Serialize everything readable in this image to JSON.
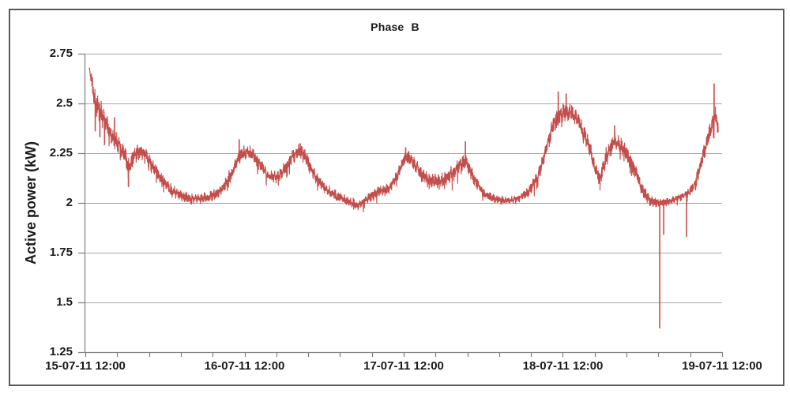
{
  "window": {
    "background": "#FFFFFF",
    "border_color": "#595959"
  },
  "chart_data": {
    "type": "line",
    "title": "Phase B",
    "xlabel": "",
    "ylabel": "Active power (kW)",
    "ylim": [
      1.25,
      2.75
    ],
    "xlim_hours": [
      0,
      96
    ],
    "grid": true,
    "legend_position": "none",
    "gridline_color": "#A6A6A6",
    "axis_color": "#7F7F7F",
    "y_ticks": [
      {
        "label": "2.75",
        "value": 2.75
      },
      {
        "label": "2.5",
        "value": 2.5
      },
      {
        "label": "2.25",
        "value": 2.25
      },
      {
        "label": "2",
        "value": 2.0
      },
      {
        "label": "1.75",
        "value": 1.75
      },
      {
        "label": "1.5",
        "value": 1.5
      },
      {
        "label": "1.25",
        "value": 1.25
      }
    ],
    "x_ticks_major": [
      {
        "label": "15-07-11 12:00",
        "hour": 0
      },
      {
        "label": "16-07-11 12:00",
        "hour": 24
      },
      {
        "label": "17-07-11 12:00",
        "hour": 48
      },
      {
        "label": "18-07-11 12:00",
        "hour": 72
      },
      {
        "label": "19-07-11 12:00",
        "hour": 96
      }
    ],
    "x_minor_tick_hours": 4.8,
    "series": [
      {
        "name": "Phase B active power",
        "color": "#C34E4B",
        "unit": "kW",
        "envelope": [
          [
            0.6,
            2.68
          ],
          [
            1.1,
            2.58
          ],
          [
            1.55,
            2.5
          ],
          [
            2.15,
            2.46
          ],
          [
            2.85,
            2.42
          ],
          [
            3.8,
            2.35
          ],
          [
            4.4,
            2.32
          ],
          [
            5.25,
            2.28
          ],
          [
            5.95,
            2.24
          ],
          [
            6.55,
            2.18
          ],
          [
            7.4,
            2.24
          ],
          [
            8.45,
            2.26
          ],
          [
            9.5,
            2.22
          ],
          [
            10.6,
            2.16
          ],
          [
            11.8,
            2.11
          ],
          [
            13.0,
            2.06
          ],
          [
            14.3,
            2.04
          ],
          [
            15.7,
            2.02
          ],
          [
            17.2,
            2.02
          ],
          [
            18.6,
            2.03
          ],
          [
            20.0,
            2.05
          ],
          [
            21.1,
            2.09
          ],
          [
            22.0,
            2.15
          ],
          [
            22.9,
            2.21
          ],
          [
            23.6,
            2.25
          ],
          [
            24.3,
            2.26
          ],
          [
            25.3,
            2.24
          ],
          [
            26.5,
            2.19
          ],
          [
            27.7,
            2.13
          ],
          [
            28.9,
            2.13
          ],
          [
            30.1,
            2.17
          ],
          [
            31.2,
            2.23
          ],
          [
            32.2,
            2.26
          ],
          [
            33.1,
            2.24
          ],
          [
            34.0,
            2.17
          ],
          [
            35.1,
            2.11
          ],
          [
            36.6,
            2.06
          ],
          [
            38.1,
            2.03
          ],
          [
            39.6,
            2.01
          ],
          [
            41.1,
            1.99
          ],
          [
            41.9,
            2.0
          ],
          [
            42.9,
            2.03
          ],
          [
            44.3,
            2.06
          ],
          [
            45.7,
            2.07
          ],
          [
            46.9,
            2.13
          ],
          [
            48.4,
            2.24
          ],
          [
            49.5,
            2.2
          ],
          [
            50.7,
            2.14
          ],
          [
            52.1,
            2.11
          ],
          [
            53.6,
            2.11
          ],
          [
            55.0,
            2.14
          ],
          [
            56.5,
            2.19
          ],
          [
            57.4,
            2.21
          ],
          [
            58.6,
            2.12
          ],
          [
            60.0,
            2.05
          ],
          [
            61.6,
            2.02
          ],
          [
            63.4,
            2.01
          ],
          [
            65.2,
            2.02
          ],
          [
            66.7,
            2.05
          ],
          [
            68.2,
            2.13
          ],
          [
            69.4,
            2.26
          ],
          [
            70.6,
            2.4
          ],
          [
            71.8,
            2.45
          ],
          [
            73.2,
            2.46
          ],
          [
            74.5,
            2.41
          ],
          [
            76.0,
            2.28
          ],
          [
            76.9,
            2.17
          ],
          [
            77.6,
            2.12
          ],
          [
            78.5,
            2.23
          ],
          [
            79.7,
            2.31
          ],
          [
            81.0,
            2.28
          ],
          [
            82.5,
            2.19
          ],
          [
            83.9,
            2.07
          ],
          [
            85.1,
            2.01
          ],
          [
            86.6,
            2.0
          ],
          [
            88.2,
            2.01
          ],
          [
            89.8,
            2.03
          ],
          [
            91.0,
            2.05
          ],
          [
            92.0,
            2.1
          ],
          [
            92.6,
            2.17
          ],
          [
            93.8,
            2.32
          ],
          [
            94.7,
            2.42
          ],
          [
            95.2,
            2.43
          ],
          [
            95.45,
            2.36
          ]
        ],
        "noise_half_width": [
          [
            0.6,
            0.02
          ],
          [
            1.0,
            0.055
          ],
          [
            2.0,
            0.07
          ],
          [
            4.0,
            0.055
          ],
          [
            7.0,
            0.05
          ],
          [
            10.0,
            0.045
          ],
          [
            13.0,
            0.035
          ],
          [
            16.0,
            0.028
          ],
          [
            19.0,
            0.03
          ],
          [
            22.0,
            0.04
          ],
          [
            24.0,
            0.042
          ],
          [
            27.0,
            0.035
          ],
          [
            31.0,
            0.04
          ],
          [
            33.0,
            0.042
          ],
          [
            36.0,
            0.032
          ],
          [
            40.0,
            0.026
          ],
          [
            44.0,
            0.028
          ],
          [
            47.0,
            0.035
          ],
          [
            48.5,
            0.04
          ],
          [
            51.0,
            0.04
          ],
          [
            54.0,
            0.042
          ],
          [
            57.0,
            0.045
          ],
          [
            59.0,
            0.035
          ],
          [
            62.0,
            0.024
          ],
          [
            65.0,
            0.022
          ],
          [
            68.0,
            0.035
          ],
          [
            71.0,
            0.06
          ],
          [
            73.0,
            0.055
          ],
          [
            75.0,
            0.05
          ],
          [
            77.0,
            0.045
          ],
          [
            79.0,
            0.052
          ],
          [
            81.0,
            0.05
          ],
          [
            83.0,
            0.045
          ],
          [
            85.0,
            0.03
          ],
          [
            87.0,
            0.022
          ],
          [
            89.0,
            0.02
          ],
          [
            91.0,
            0.03
          ],
          [
            93.0,
            0.052
          ],
          [
            95.0,
            0.058
          ],
          [
            95.45,
            0.05
          ]
        ],
        "spikes": [
          [
            1.5,
            2.36
          ],
          [
            2.2,
            2.33
          ],
          [
            2.9,
            2.29
          ],
          [
            4.4,
            2.43
          ],
          [
            6.5,
            2.08
          ],
          [
            23.2,
            2.32
          ],
          [
            32.4,
            2.3
          ],
          [
            48.3,
            2.28
          ],
          [
            57.3,
            2.31
          ],
          [
            71.3,
            2.56
          ],
          [
            72.5,
            2.55
          ],
          [
            79.8,
            2.39
          ],
          [
            86.6,
            1.37
          ],
          [
            87.2,
            1.84
          ],
          [
            90.65,
            1.83
          ],
          [
            94.8,
            2.6
          ]
        ]
      }
    ]
  }
}
